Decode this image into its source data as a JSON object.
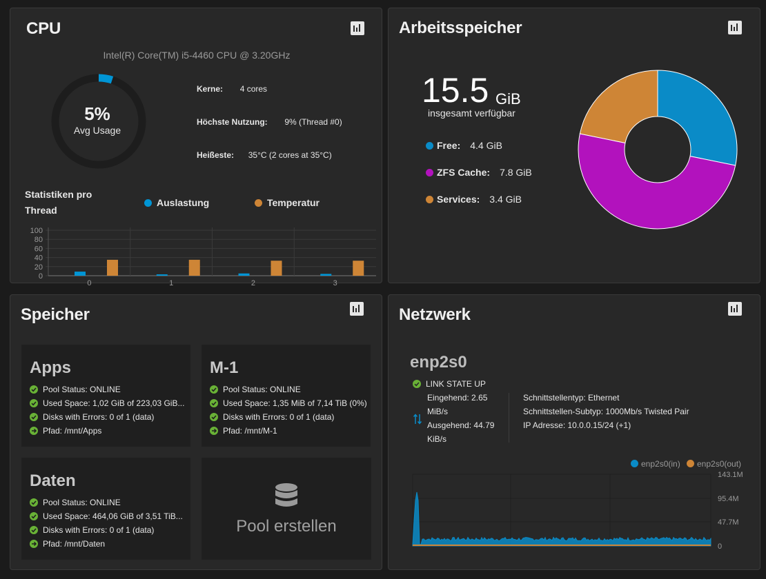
{
  "cpu": {
    "title": "CPU",
    "model": "Intel(R) Core(TM) i5-4460 CPU @ 3.20GHz",
    "avg_usage_pct": 5,
    "avg_usage_value": "5%",
    "avg_usage_label": "Avg Usage",
    "cores_label": "Kerne:",
    "cores_value": "4 cores",
    "highest_label": "Höchste Nutzung:",
    "highest_value": "9%  (Thread #0)",
    "hottest_label": "Heißeste:",
    "hottest_value": "35°C  (2 cores at 35°C)",
    "stats_title_line1": "Statistiken pro",
    "stats_title_line2": "Thread",
    "legend_usage": "Auslastung",
    "legend_temp": "Temperatur",
    "report_icon": "bar-chart-icon"
  },
  "chart_data": {
    "type": "bar",
    "categories": [
      "0",
      "1",
      "2",
      "3"
    ],
    "series": [
      {
        "name": "Auslastung",
        "values": [
          9,
          3,
          5,
          4
        ]
      },
      {
        "name": "Temperatur",
        "values": [
          35,
          35,
          33,
          33
        ]
      }
    ],
    "yticks": [
      "100",
      "80",
      "60",
      "40",
      "20",
      "0"
    ],
    "ylim": [
      0,
      100
    ],
    "colors": {
      "Auslastung": "#0095d5",
      "Temperatur": "#ce8536"
    }
  },
  "memory": {
    "title": "Arbeitsspeicher",
    "total_value": "15.5",
    "total_unit": "GiB",
    "total_label": "insgesamt verfügbar",
    "items": [
      {
        "label": "Free:",
        "value": "4.4 GiB",
        "gib": 4.4,
        "color": "#0a8bc7"
      },
      {
        "label": "ZFS Cache:",
        "value": "7.8 GiB",
        "gib": 7.8,
        "color": "#b212bd"
      },
      {
        "label": "Services:",
        "value": "3.4 GiB",
        "gib": 3.4,
        "color": "#ce8536"
      }
    ]
  },
  "storage": {
    "title": "Speicher",
    "pools": [
      {
        "name": "Apps",
        "status": "Pool Status:  ONLINE",
        "used": "Used Space:  1,02 GiB of 223,03 GiB...",
        "errors": "Disks with Errors:  0 of 1 (data)",
        "path": "Pfad:  /mnt/Apps"
      },
      {
        "name": "M-1",
        "status": "Pool Status:  ONLINE",
        "used": "Used Space:  1,35 MiB of 7,14 TiB (0%)",
        "errors": "Disks with Errors:  0 of 1 (data)",
        "path": "Pfad:  /mnt/M-1"
      },
      {
        "name": "Daten",
        "status": "Pool Status:  ONLINE",
        "used": "Used Space:  464,06 GiB of 3,51 TiB...",
        "errors": "Disks with Errors:  0 of 1 (data)",
        "path": "Pfad:  /mnt/Daten"
      }
    ],
    "create_pool_label": "Pool erstellen"
  },
  "network": {
    "title": "Netzwerk",
    "interface": "enp2s0",
    "link_state": "LINK STATE UP",
    "in_line1": "Eingehend:  2.65",
    "in_line2": "MiB/s",
    "out_line1": "Ausgehend:  44.79",
    "out_line2": "KiB/s",
    "type": "Schnittstellentyp:  Ethernet",
    "subtype": "Schnittstellen-Subtyp:  1000Mb/s Twisted Pair",
    "ip": "IP Adresse:  10.0.0.15/24 (+1)",
    "legend_in": "enp2s0(in)",
    "legend_out": "enp2s0(out)",
    "yticks": [
      "143.1M",
      "95.4M",
      "47.7M",
      "0"
    ],
    "colors": {
      "in": "#0a8bc7",
      "out": "#ce8536"
    }
  }
}
